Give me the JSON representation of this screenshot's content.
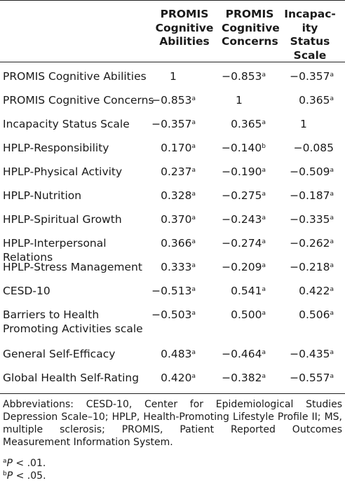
{
  "headers": [
    [
      "PROMIS",
      "Cognitive",
      "Abilities"
    ],
    [
      "PROMIS",
      "Cognitive",
      "Concerns"
    ],
    [
      "Incapac-",
      "ity Status",
      "Scale"
    ]
  ],
  "rows": [
    {
      "label": "PROMIS Cognitive Abilities",
      "v": [
        "1",
        "−0.853",
        "−0.357"
      ],
      "s": [
        "",
        "a",
        "a"
      ]
    },
    {
      "label": "PROMIS Cognitive Concerns",
      "v": [
        "−0.853",
        "1",
        "0.365"
      ],
      "s": [
        "a",
        "",
        "a"
      ]
    },
    {
      "label": "Incapacity Status Scale",
      "v": [
        "−0.357",
        "0.365",
        "1"
      ],
      "s": [
        "a",
        "a",
        ""
      ]
    },
    {
      "label": "HPLP-Responsibility",
      "v": [
        "0.170",
        "−0.140",
        "−0.085"
      ],
      "s": [
        "a",
        "b",
        ""
      ]
    },
    {
      "label": "HPLP-Physical Activity",
      "v": [
        "0.237",
        "−0.190",
        "−0.509"
      ],
      "s": [
        "a",
        "a",
        "a"
      ]
    },
    {
      "label": "HPLP-Nutrition",
      "v": [
        "0.328",
        "−0.275",
        "−0.187"
      ],
      "s": [
        "a",
        "a",
        "a"
      ]
    },
    {
      "label": "HPLP-Spiritual Growth",
      "v": [
        "0.370",
        "−0.243",
        "−0.335"
      ],
      "s": [
        "a",
        "a",
        "a"
      ]
    },
    {
      "label": "HPLP-Interpersonal Relations",
      "v": [
        "0.366",
        "−0.274",
        "−0.262"
      ],
      "s": [
        "a",
        "a",
        "a"
      ]
    },
    {
      "label": "HPLP-Stress Management",
      "v": [
        "0.333",
        "−0.209",
        "−0.218"
      ],
      "s": [
        "a",
        "a",
        "a"
      ]
    },
    {
      "label": "CESD-10",
      "v": [
        "−0.513",
        "0.541",
        "0.422"
      ],
      "s": [
        "a",
        "a",
        "a"
      ]
    },
    {
      "label": "Barriers to Health Promoting Activities scale",
      "v": [
        "−0.503",
        "0.500",
        "0.506"
      ],
      "s": [
        "a",
        "a",
        "a"
      ]
    },
    {
      "label": "General Self-Efficacy",
      "v": [
        "0.483",
        "−0.464",
        "−0.435"
      ],
      "s": [
        "a",
        "a",
        "a"
      ]
    },
    {
      "label": "Global Health Self-Rating",
      "v": [
        "0.420",
        "−0.382",
        "−0.557"
      ],
      "s": [
        "a",
        "a",
        "a"
      ]
    }
  ],
  "footnote_abbreviations": "Abbreviations: CESD-10, Center for Epidemiological Studies Depression Scale–10; HPLP, Health-Promoting Lifestyle Profile II; MS, multiple sclerosis; PROMIS, Patient Reported Outcomes Measurement Information System.",
  "footnote_a": {
    "mark": "a",
    "text": "P < .01."
  },
  "footnote_b": {
    "mark": "b",
    "text": "P < .05."
  }
}
